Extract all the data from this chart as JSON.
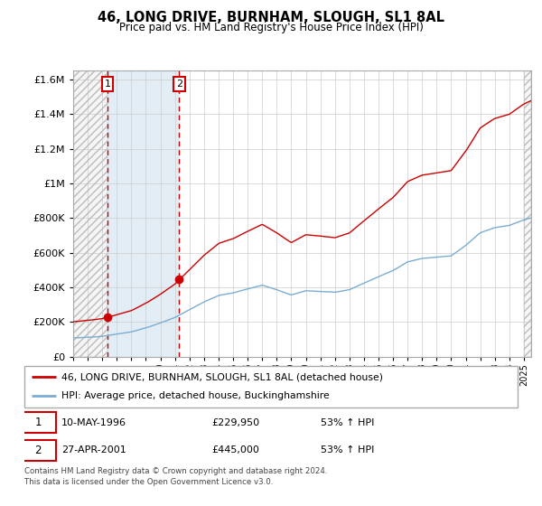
{
  "title": "46, LONG DRIVE, BURNHAM, SLOUGH, SL1 8AL",
  "subtitle": "Price paid vs. HM Land Registry's House Price Index (HPI)",
  "legend_line1": "46, LONG DRIVE, BURNHAM, SLOUGH, SL1 8AL (detached house)",
  "legend_line2": "HPI: Average price, detached house, Buckinghamshire",
  "sale1_date": "10-MAY-1996",
  "sale1_price": 229950,
  "sale1_year": 1996.36,
  "sale2_date": "27-APR-2001",
  "sale2_price": 445000,
  "sale2_year": 2001.29,
  "footnote1": "Contains HM Land Registry data © Crown copyright and database right 2024.",
  "footnote2": "This data is licensed under the Open Government Licence v3.0.",
  "red_line_color": "#cc0000",
  "blue_line_color": "#7aadd4",
  "dashed_color": "#cc0000",
  "shade_color": "#deeaf5",
  "hatch_color": "#cccccc",
  "ylim_max": 1650000,
  "xmin": 1994.0,
  "xmax": 2025.5
}
